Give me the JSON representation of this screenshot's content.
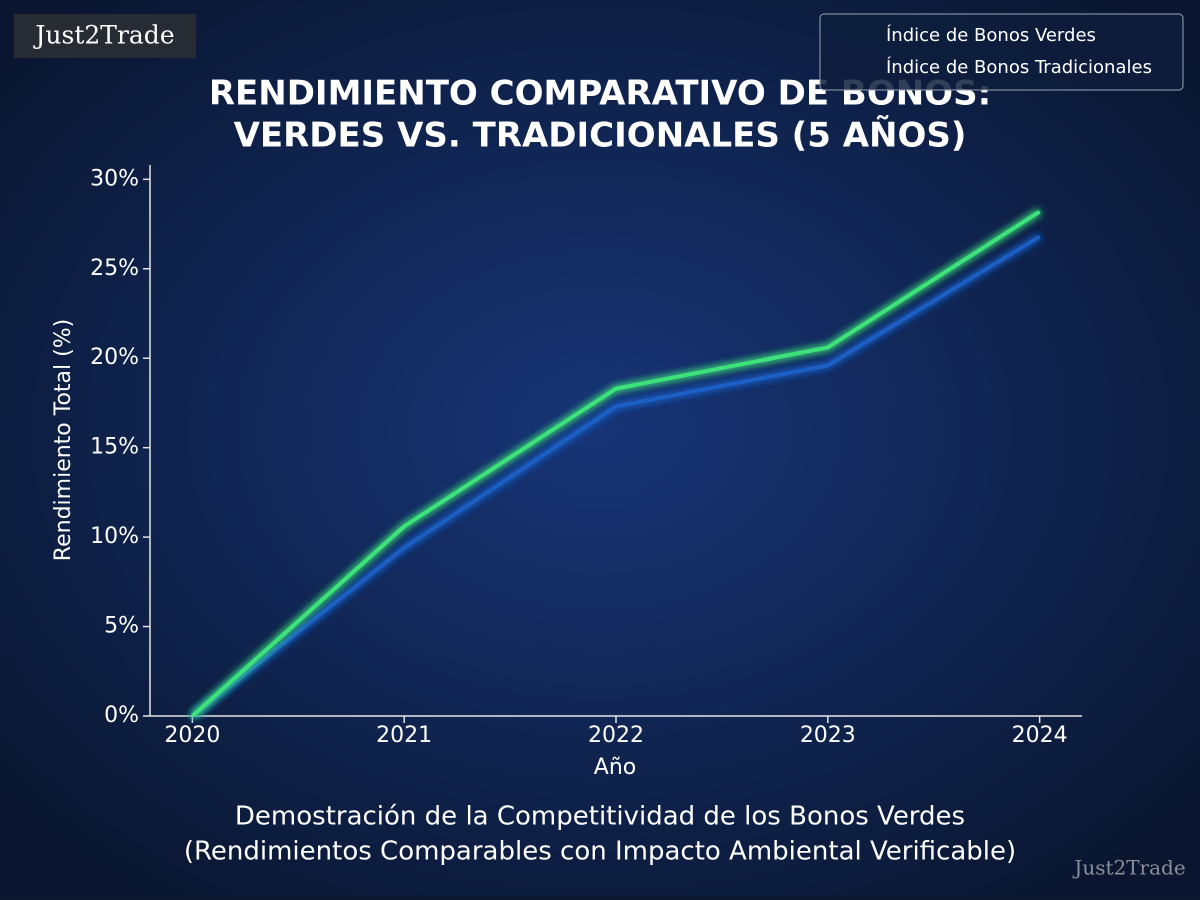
{
  "chart_data": {
    "type": "line",
    "title_lines": [
      "RENDIMIENTO COMPARATIVO DE BONOS:",
      "VERDES VS. TRADICIONALES (5 AÑOS)"
    ],
    "caption_lines": [
      "Demostración de la Competitividad de los Bonos Verdes",
      "(Rendimientos Comparables con Impacto Ambiental Verificable)"
    ],
    "watermarks": [
      "Just2Trade",
      "Just2Trade"
    ],
    "x_label": "Año",
    "y_label": "Rendimiento Total (%)",
    "x": [
      2020,
      2021,
      2022,
      2023,
      2024
    ],
    "series": [
      {
        "name": "Índice de Bonos Verdes",
        "color": "#3ee37a",
        "values": [
          0,
          10.6,
          18.3,
          20.6,
          28.2
        ]
      },
      {
        "name": "Índice de Bonos Tradicionales",
        "color": "#1f5fc4",
        "values": [
          0,
          9.4,
          17.3,
          19.6,
          26.8
        ]
      }
    ],
    "xlim": [
      2019.8,
      2024.2
    ],
    "xticks": [
      2020,
      2021,
      2022,
      2023,
      2024
    ],
    "ylim": [
      0,
      30.8
    ],
    "yticks": [
      {
        "value": 0,
        "label": "0%"
      },
      {
        "value": 5,
        "label": "5%"
      },
      {
        "value": 10,
        "label": "10%"
      },
      {
        "value": 15,
        "label": "15%"
      },
      {
        "value": 20,
        "label": "20%"
      },
      {
        "value": 25,
        "label": "25%"
      },
      {
        "value": 30,
        "label": "30%"
      }
    ],
    "grid": false,
    "legend": "upper right"
  }
}
